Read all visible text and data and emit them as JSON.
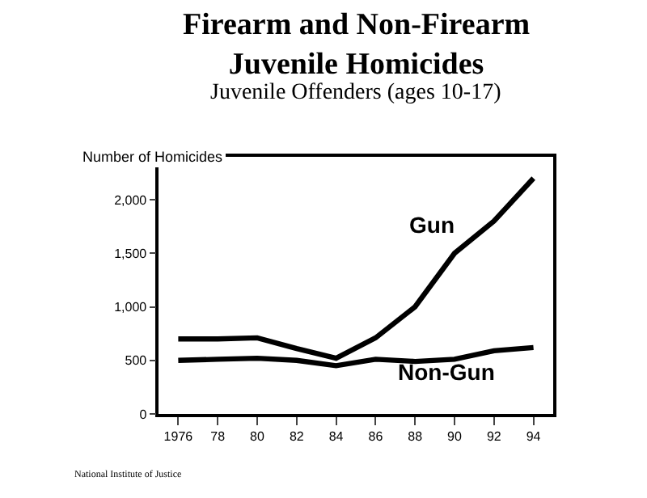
{
  "chart_data": {
    "type": "line",
    "title": "Firearm and Non-Firearm\nJuvenile Homicides",
    "subtitle": "Juvenile Offenders (ages 10-17)",
    "ylabel": "Number of Homicides",
    "x": [
      1976,
      1978,
      1980,
      1982,
      1984,
      1986,
      1988,
      1990,
      1992,
      1994
    ],
    "series": [
      {
        "name": "Gun",
        "color": "#000000",
        "values": [
          700,
          700,
          710,
          610,
          520,
          710,
          1000,
          1500,
          1800,
          2200
        ]
      },
      {
        "name": "Non-Gun",
        "color": "#000000",
        "values": [
          500,
          510,
          520,
          500,
          450,
          510,
          490,
          510,
          590,
          620
        ]
      }
    ],
    "xlim": [
      1975,
      1995
    ],
    "xticks": [
      {
        "value": 1976,
        "label": "1976"
      },
      {
        "value": 1978,
        "label": "78"
      },
      {
        "value": 1980,
        "label": "80"
      },
      {
        "value": 1982,
        "label": "82"
      },
      {
        "value": 1984,
        "label": "84"
      },
      {
        "value": 1986,
        "label": "86"
      },
      {
        "value": 1988,
        "label": "88"
      },
      {
        "value": 1990,
        "label": "90"
      },
      {
        "value": 1992,
        "label": "92"
      },
      {
        "value": 1994,
        "label": "94"
      }
    ],
    "ylim": [
      0,
      2400
    ],
    "yticks": [
      0,
      500,
      {
        "value": 1000,
        "label": "1,000"
      },
      {
        "value": 1500,
        "label": "1,500"
      },
      {
        "value": 2000,
        "label": "2,000"
      }
    ],
    "legend": false,
    "marker": "none",
    "line_style": "solid",
    "annotations": [
      "National Institute of Justice"
    ]
  }
}
